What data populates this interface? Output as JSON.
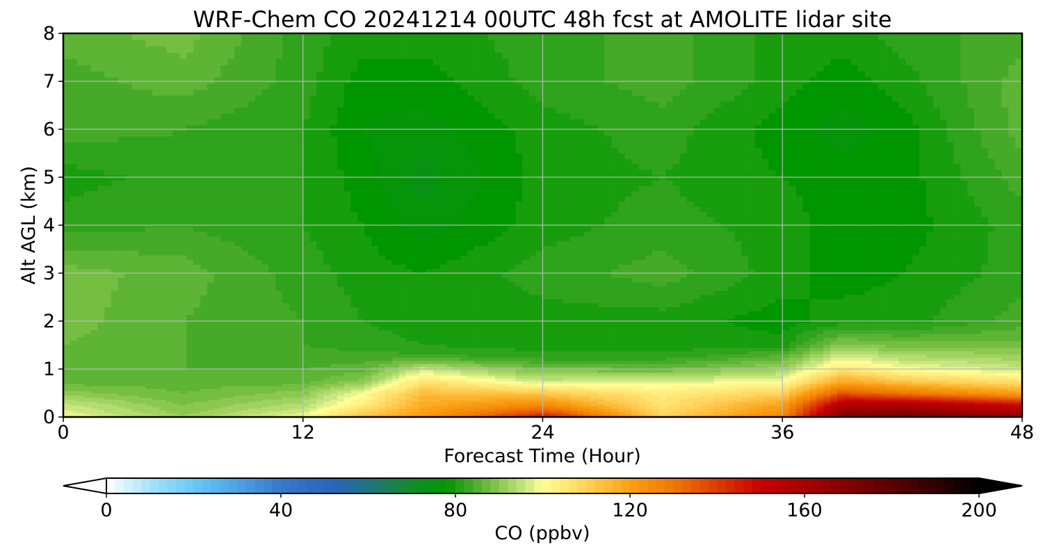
{
  "chart_data": {
    "type": "heatmap",
    "title": "WRF-Chem CO  20241214 00UTC 48h fcst at AMOLITE lidar site",
    "xlabel": "Forecast Time (Hour)",
    "ylabel": "Alt AGL (km)",
    "xlim": [
      0,
      48
    ],
    "ylim": [
      0,
      8
    ],
    "xticks": [
      0,
      12,
      24,
      36,
      48
    ],
    "yticks": [
      0,
      1,
      2,
      3,
      4,
      5,
      6,
      7,
      8
    ],
    "grid": true,
    "colorbar": {
      "label": "CO  (ppbv)",
      "ticks": [
        0,
        40,
        80,
        120,
        160,
        200
      ],
      "range": [
        0,
        200
      ],
      "extend": "both",
      "orientation": "horizontal"
    },
    "x": [
      0,
      6,
      12,
      15,
      18,
      24,
      30,
      36,
      39,
      42,
      48
    ],
    "y": [
      0,
      0.1,
      0.25,
      0.5,
      0.75,
      1,
      1.25,
      1.5,
      2,
      3,
      4,
      5,
      6,
      7,
      8
    ],
    "values": [
      [
        100,
        92,
        100,
        114,
        122,
        148,
        110,
        128,
        172,
        174,
        168
      ],
      [
        98,
        90,
        97,
        110,
        120,
        138,
        108,
        124,
        166,
        168,
        160
      ],
      [
        96,
        89,
        94,
        104,
        118,
        126,
        106,
        120,
        158,
        160,
        150
      ],
      [
        90,
        87,
        90,
        100,
        114,
        112,
        104,
        110,
        136,
        130,
        120
      ],
      [
        86,
        86,
        86,
        90,
        106,
        96,
        97,
        100,
        118,
        112,
        106
      ],
      [
        86,
        85,
        85,
        86,
        96,
        88,
        87,
        92,
        106,
        100,
        96
      ],
      [
        86,
        85,
        84,
        84,
        84,
        82,
        82,
        86,
        98,
        94,
        92
      ],
      [
        87,
        85,
        83,
        82,
        81,
        80,
        80,
        80,
        90,
        88,
        88
      ],
      [
        88,
        85,
        83,
        81,
        80,
        80,
        80,
        78,
        80,
        80,
        84
      ],
      [
        88,
        86,
        82,
        80,
        79,
        82,
        84,
        80,
        78,
        79,
        82
      ],
      [
        82,
        83,
        81,
        79,
        76,
        80,
        82,
        80,
        78,
        78,
        82
      ],
      [
        80,
        82,
        81,
        78,
        74,
        80,
        81,
        79,
        78,
        78,
        84
      ],
      [
        84,
        83,
        81,
        77,
        76,
        80,
        82,
        78,
        76,
        78,
        86
      ],
      [
        84,
        86,
        82,
        78,
        78,
        82,
        84,
        80,
        78,
        80,
        86
      ],
      [
        86,
        88,
        82,
        80,
        80,
        82,
        84,
        80,
        80,
        82,
        84
      ]
    ]
  }
}
